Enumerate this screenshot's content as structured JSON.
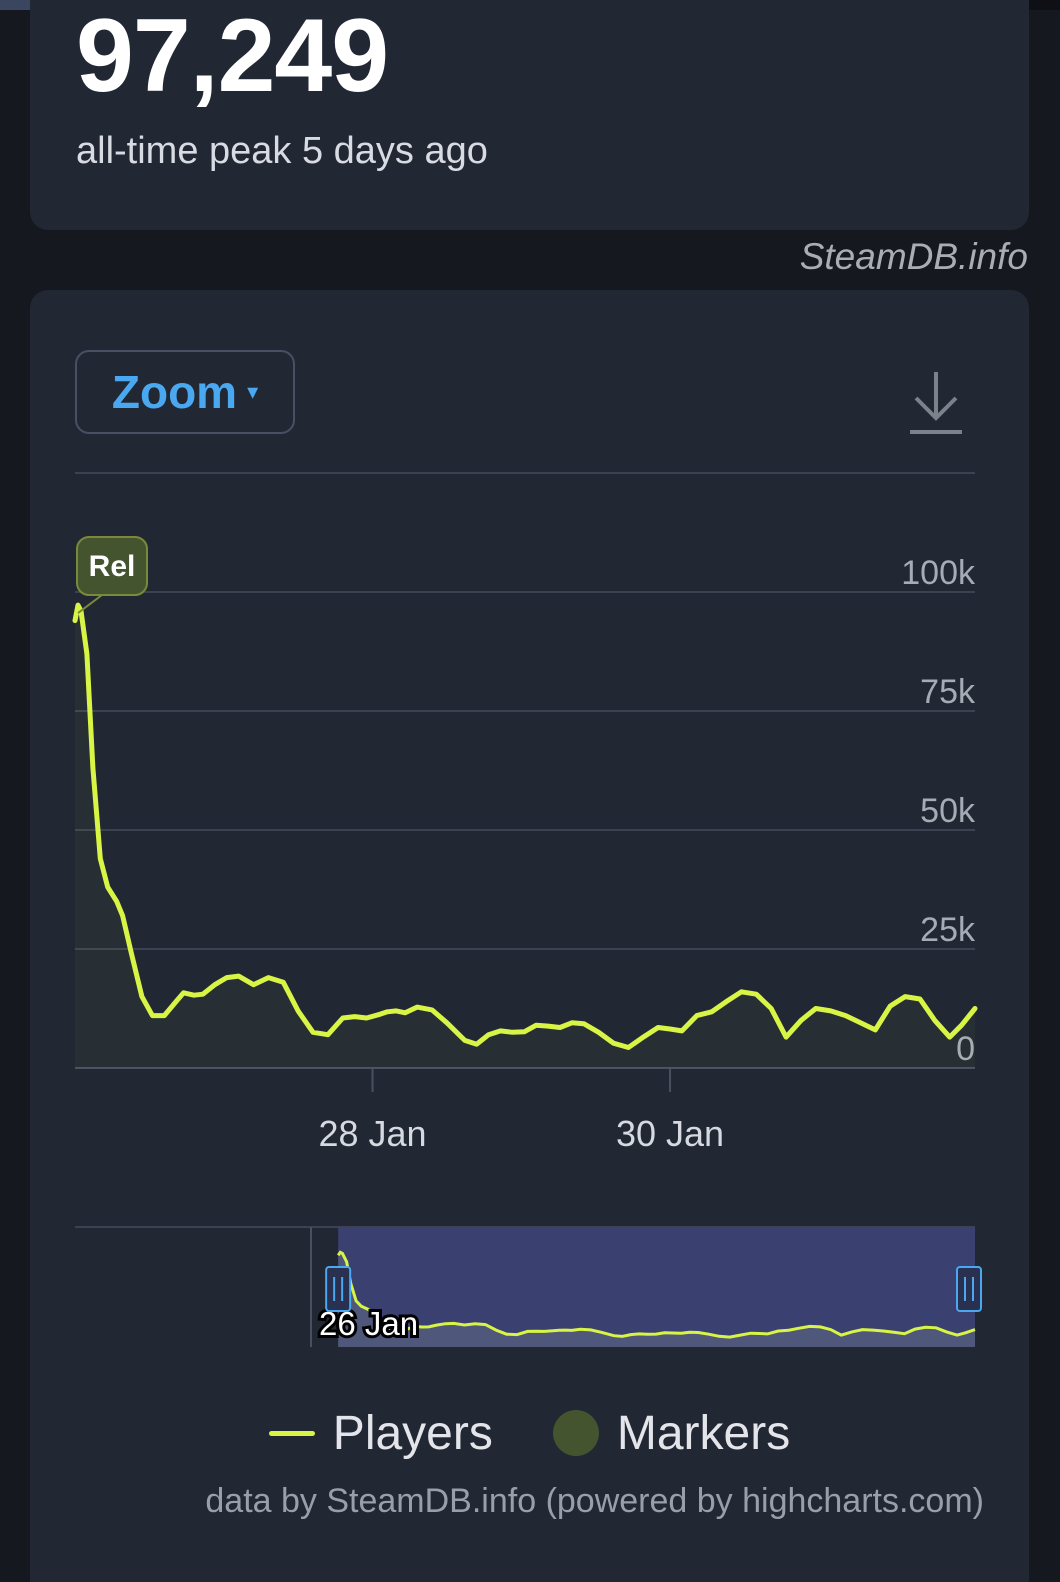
{
  "header": {
    "peak_value": "97,249",
    "peak_label": "all-time peak 5 days ago",
    "credit": "SteamDB.info"
  },
  "toolbar": {
    "zoom_label": "Zoom",
    "zoom_caret": "▾"
  },
  "colors": {
    "players": "#d8f545",
    "marker": "#44542f",
    "marker_border": "#7a8a3a",
    "navigator_mask": "#3a4170",
    "navigator_handle": "#4aa8f0"
  },
  "chart_data": {
    "type": "line",
    "ylim": [
      0,
      125000
    ],
    "yticks": [
      0,
      25000,
      50000,
      75000,
      100000
    ],
    "ytick_labels": [
      "0",
      "25k",
      "50k",
      "75k",
      "100k"
    ],
    "xlim": [
      26.0,
      32.05
    ],
    "xtick_positions": [
      28,
      30
    ],
    "xtick_labels": [
      "28 Jan",
      "30 Jan"
    ],
    "grid": true,
    "series": [
      {
        "name": "Players",
        "x": [
          26.0,
          26.02,
          26.04,
          26.08,
          26.12,
          26.17,
          26.22,
          26.28,
          26.32,
          26.38,
          26.45,
          26.52,
          26.6,
          26.68,
          26.73,
          26.8,
          26.86,
          26.94,
          27.02,
          27.1,
          27.2,
          27.3,
          27.4,
          27.5,
          27.6,
          27.7,
          27.8,
          27.88,
          27.96,
          28.04,
          28.1,
          28.16,
          28.22,
          28.3,
          28.4,
          28.5,
          28.62,
          28.7,
          28.78,
          28.86,
          28.94,
          29.02,
          29.1,
          29.18,
          29.26,
          29.34,
          29.42,
          29.52,
          29.62,
          29.72,
          29.82,
          29.92,
          30.0,
          30.08,
          30.18,
          30.28,
          30.38,
          30.48,
          30.58,
          30.68,
          30.78,
          30.88,
          30.98,
          31.08,
          31.18,
          31.28,
          31.38,
          31.48,
          31.58,
          31.68,
          31.78,
          31.88,
          31.96,
          32.05
        ],
        "values": [
          94000,
          97249,
          96000,
          87000,
          63000,
          44000,
          38000,
          35000,
          32000,
          24000,
          15000,
          11000,
          11000,
          14000,
          15800,
          15300,
          15500,
          17500,
          19000,
          19300,
          17500,
          19000,
          18000,
          12000,
          7500,
          7000,
          10500,
          10800,
          10500,
          11200,
          11800,
          12000,
          11600,
          12800,
          12200,
          9500,
          5800,
          5000,
          7000,
          7800,
          7500,
          7600,
          9000,
          8800,
          8500,
          9500,
          9300,
          7500,
          5200,
          4300,
          6500,
          8500,
          8200,
          7800,
          11000,
          11800,
          14000,
          16000,
          15500,
          12500,
          6500,
          10000,
          12500,
          12000,
          11000,
          9500,
          8000,
          13000,
          15000,
          14500,
          10000,
          6500,
          9000,
          12500
        ]
      }
    ],
    "markers": [
      {
        "label": "Rel",
        "x": 26.02,
        "y": 97249
      }
    ],
    "navigator": {
      "tick_label": "26 Jan"
    },
    "legend_position": "bottom-center",
    "legend_items": [
      {
        "name": "Players",
        "kind": "line"
      },
      {
        "name": "Markers",
        "kind": "circle"
      }
    ]
  },
  "footer": {
    "credit": "data by SteamDB.info (powered by highcharts.com)"
  }
}
